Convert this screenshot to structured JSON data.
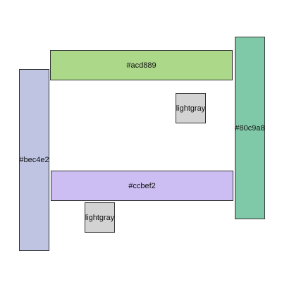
{
  "boxes": [
    {
      "id": "acd889",
      "label": "#acd889",
      "color": "#acd889"
    },
    {
      "id": "80c9a8",
      "label": "#80c9a8",
      "color": "#80c9a8"
    },
    {
      "id": "bec4e2",
      "label": "#bec4e2",
      "color": "#bec4e2"
    },
    {
      "id": "ccbef2",
      "label": "#ccbef2",
      "color": "#ccbef2"
    },
    {
      "id": "lg1",
      "label": "lightgray",
      "color": "#d3d3d3"
    },
    {
      "id": "lg2",
      "label": "lightgray",
      "color": "#d3d3d3"
    }
  ]
}
